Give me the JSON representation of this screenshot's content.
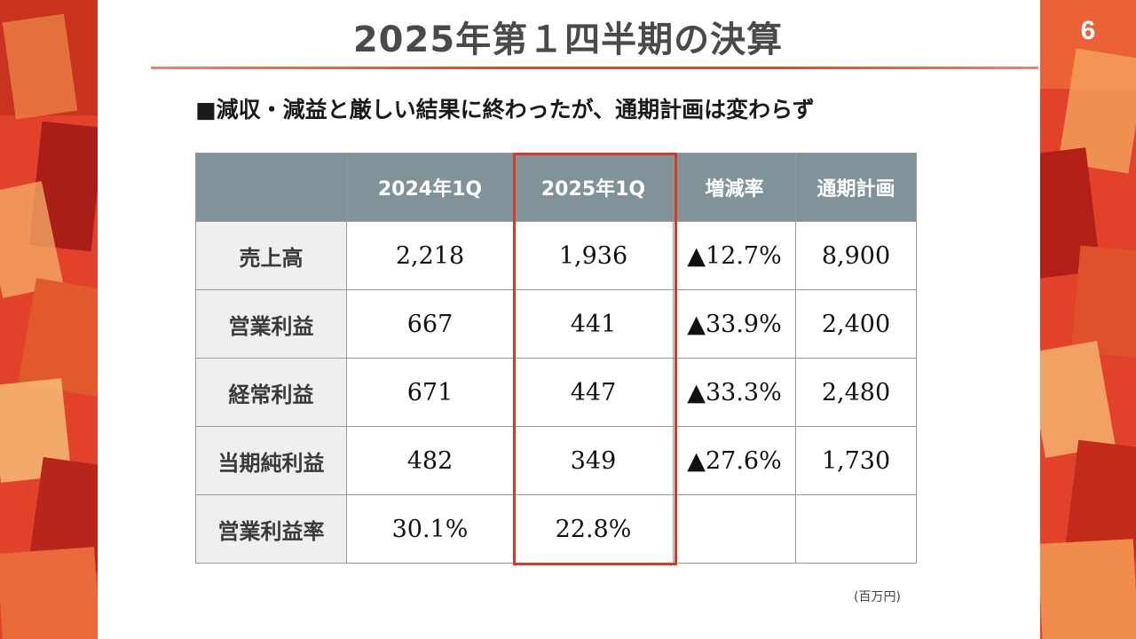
{
  "page_number": "6",
  "title": "2025年第１四半期の決算",
  "subtitle": "■減収・減益と厳しい結果に終わったが、通期計画は変わらず",
  "table": {
    "columns": [
      "2024年1Q",
      "2025年1Q",
      "増減率",
      "通期計画"
    ],
    "rows": [
      {
        "label": "売上高",
        "cells": [
          "2,218",
          "1,936",
          "▲12.7%",
          "8,900"
        ]
      },
      {
        "label": "営業利益",
        "cells": [
          "667",
          "441",
          "▲33.9%",
          "2,400"
        ]
      },
      {
        "label": "経常利益",
        "cells": [
          "671",
          "447",
          "▲33.3%",
          "2,480"
        ]
      },
      {
        "label": "当期純利益",
        "cells": [
          "482",
          "349",
          "▲27.6%",
          "1,730"
        ]
      },
      {
        "label": "営業利益率",
        "cells": [
          "30.1%",
          "22.8%",
          "",
          ""
        ]
      }
    ]
  },
  "unit_note": "(百万円)",
  "colors": {
    "header_bg": "#7f9399",
    "highlight": "#d23b2a",
    "accent_rule": "#d94a30"
  }
}
